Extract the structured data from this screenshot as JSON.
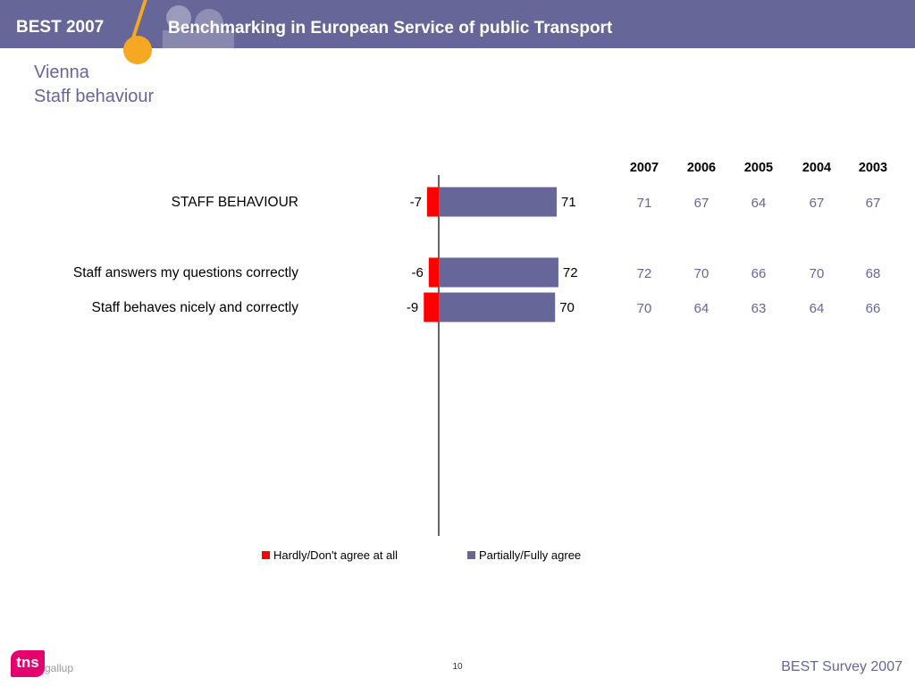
{
  "header": {
    "brand": "BEST 2007",
    "slogan": "Benchmarking in European Service of public Transport"
  },
  "title": {
    "city": "Vienna",
    "topic": "Staff behaviour"
  },
  "chart_data": {
    "type": "bar",
    "orientation": "horizontal",
    "stacked": "diverging",
    "categories": [
      "STAFF BEHAVIOUR",
      "Staff answers my questions correctly",
      "Staff behaves nicely and correctly"
    ],
    "series": [
      {
        "name": "Hardly/Don't agree at all",
        "color": "#ff0000",
        "values": [
          -7,
          -6,
          -9
        ],
        "labels": [
          "-7",
          "-6",
          "-9"
        ]
      },
      {
        "name": "Partially/Fully agree",
        "color": "#666699",
        "values": [
          71,
          72,
          70
        ],
        "labels": [
          "71",
          "72",
          "70"
        ]
      }
    ],
    "legend_position": "bottom",
    "grid": false
  },
  "years_table": {
    "headers": [
      "2007",
      "2006",
      "2005",
      "2004",
      "2003"
    ],
    "rows": [
      [
        "71",
        "67",
        "64",
        "67",
        "67"
      ],
      [
        "72",
        "70",
        "66",
        "70",
        "68"
      ],
      [
        "70",
        "64",
        "63",
        "64",
        "66"
      ]
    ]
  },
  "footer": {
    "logo_text": "tns",
    "logo_sub": "gallup",
    "page_number": "10",
    "survey": "BEST Survey 2007"
  },
  "colors": {
    "brand": "#666699",
    "accent": "#f7a823",
    "negative": "#ff0000",
    "logo": "#e5006e"
  }
}
